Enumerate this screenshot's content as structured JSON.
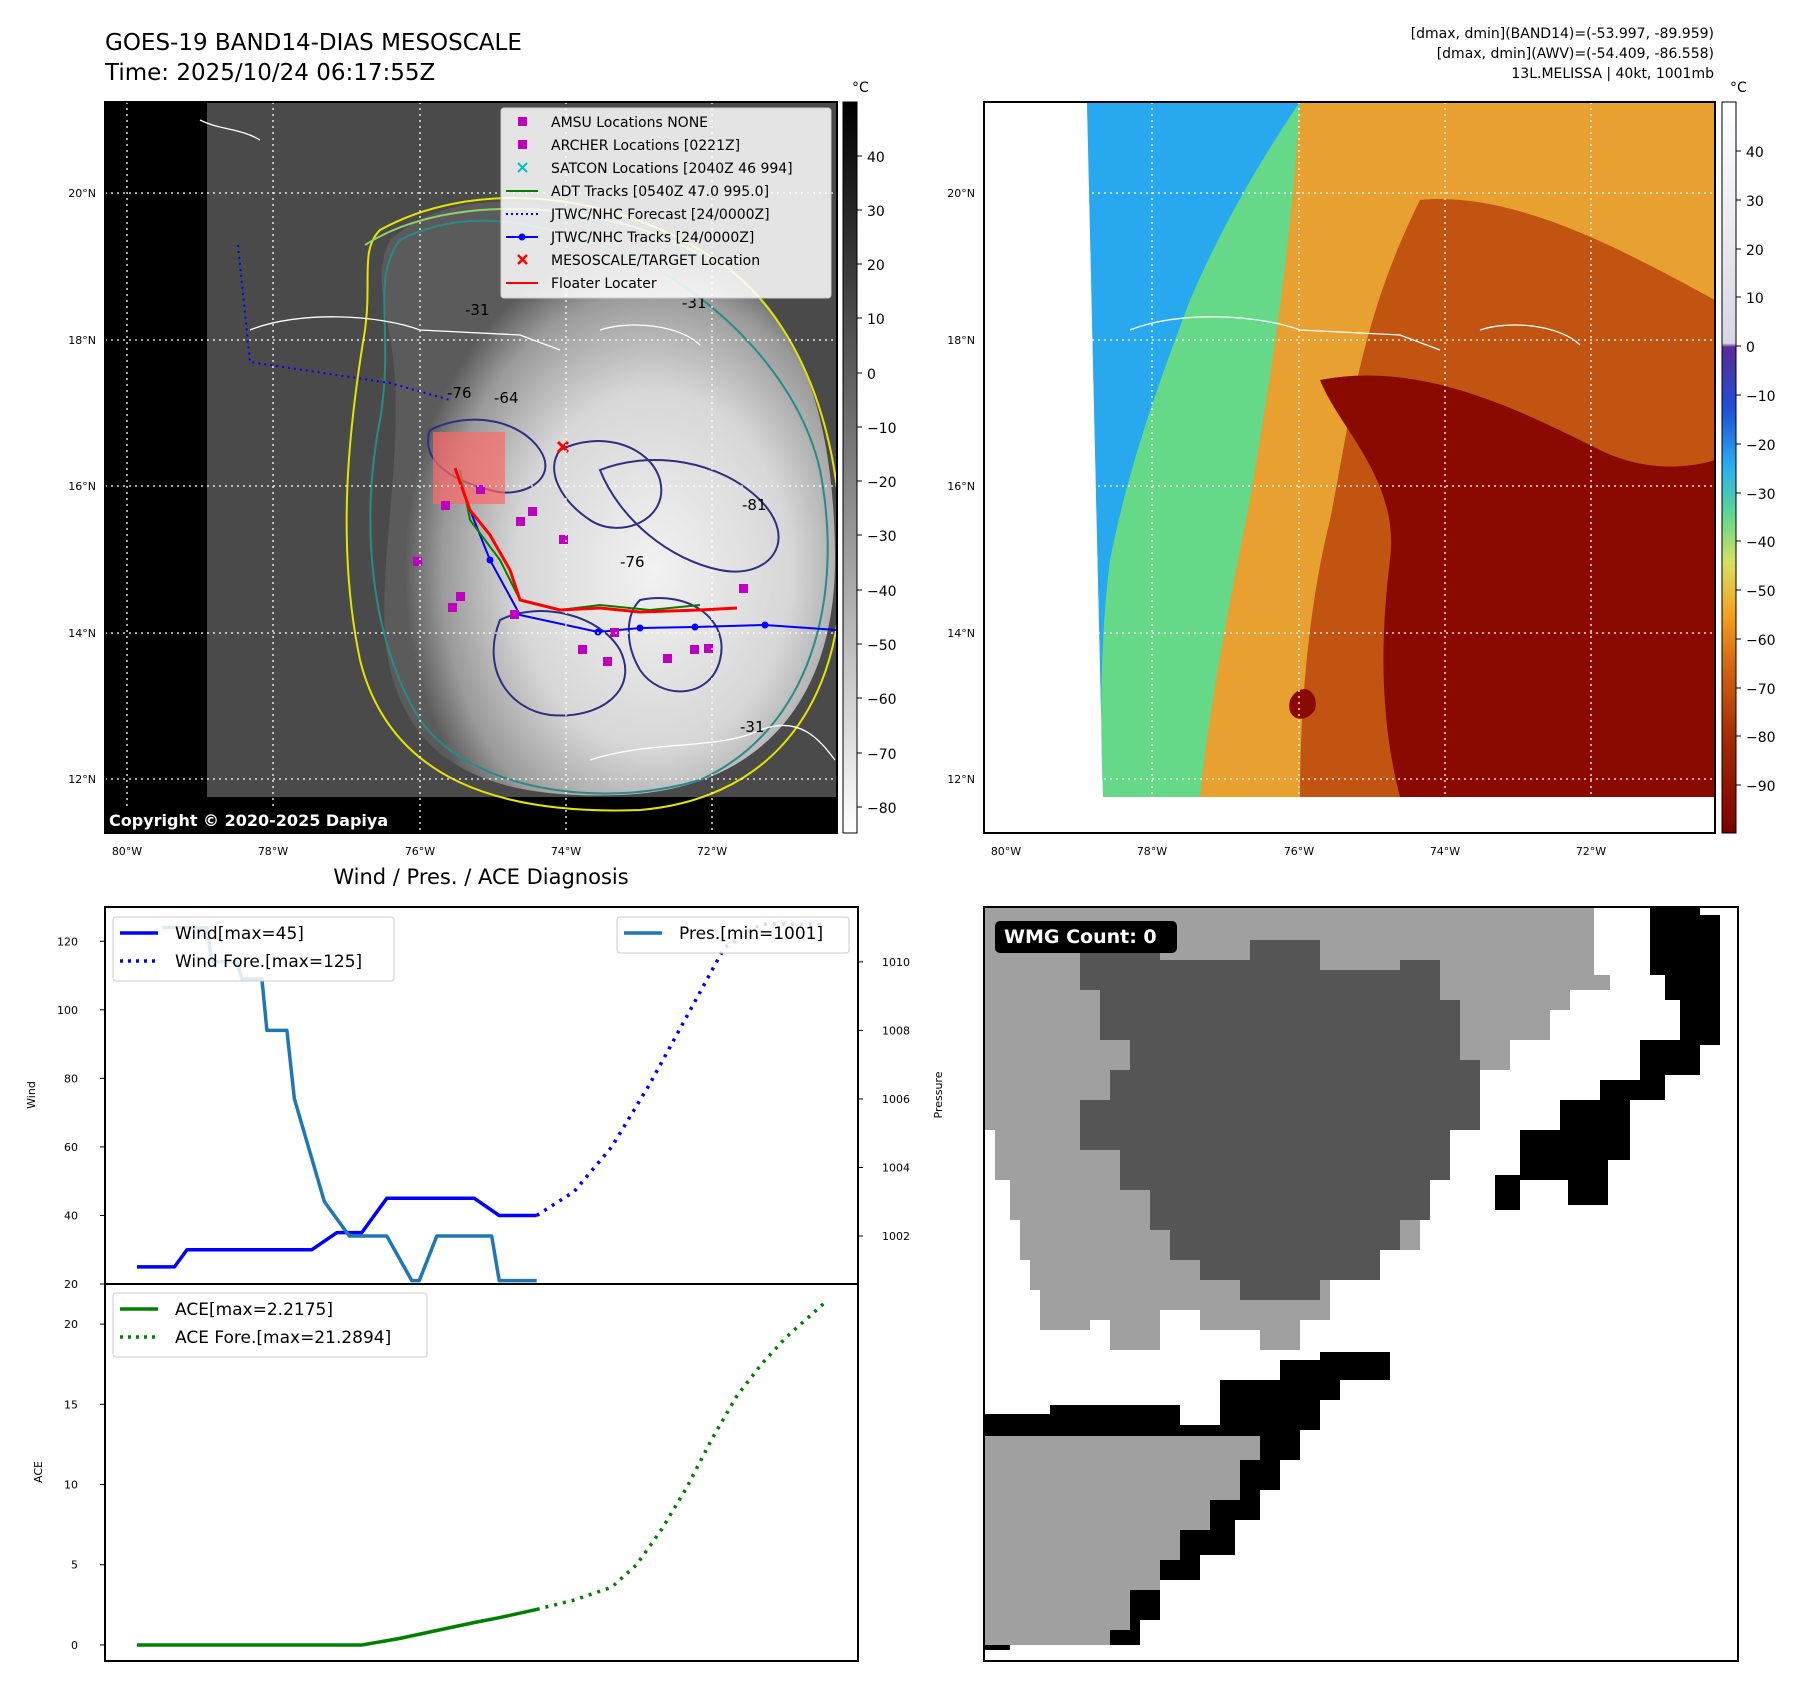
{
  "header": {
    "title_line1": "GOES-19 BAND14-DIAS MESOSCALE",
    "title_line2": "Time: 2025/10/24 06:17:55Z",
    "info_line1": "[dmax, dmin](BAND14)=(-53.997, -89.959)",
    "info_line2": "[dmax, dmin](AWV)=(-54.409, -86.558)",
    "info_line3": "13L.MELISSA | 40kt, 1001mb"
  },
  "map_axes": {
    "lon_ticks": [
      "80°W",
      "78°W",
      "76°W",
      "74°W",
      "72°W"
    ],
    "lat_ticks": [
      "20°N",
      "18°N",
      "16°N",
      "14°N",
      "12°N"
    ]
  },
  "ir_panel": {
    "colorbar_unit": "°C",
    "colorbar_ticks": [
      "40",
      "30",
      "20",
      "10",
      "0",
      "−10",
      "−20",
      "−30",
      "−40",
      "−50",
      "−60",
      "−70",
      "−80"
    ],
    "copyright": "Copyright © 2020-2025 Dapiya",
    "contour_labels": [
      "-76",
      "-64",
      "-81",
      "-76",
      "-31",
      "-31",
      "-31"
    ],
    "legend": [
      {
        "label": "AMSU Locations NONE",
        "color": "#c000c0",
        "marker": "square"
      },
      {
        "label": "ARCHER Locations [0221Z]",
        "color": "#c000c0",
        "marker": "square"
      },
      {
        "label": "SATCON Locations [2040Z 46 994]",
        "color": "#00c0c0",
        "marker": "x"
      },
      {
        "label": "ADT Tracks [0540Z 47.0 995.0]",
        "color": "#008000",
        "marker": "line"
      },
      {
        "label": "JTWC/NHC Forecast [24/0000Z]",
        "color": "#0000ff",
        "marker": "dotted"
      },
      {
        "label": "JTWC/NHC Tracks [24/0000Z]",
        "color": "#0000ff",
        "marker": "line-dot"
      },
      {
        "label": "MESOSCALE/TARGET Location",
        "color": "#ff0000",
        "marker": "x"
      },
      {
        "label": "Floater Locater",
        "color": "#ff0000",
        "marker": "line"
      }
    ]
  },
  "awv_panel": {
    "colorbar_unit": "°C",
    "colorbar_ticks": [
      "40",
      "30",
      "20",
      "10",
      "0",
      "−10",
      "−20",
      "−30",
      "−40",
      "−50",
      "−60",
      "−70",
      "−80",
      "−90"
    ]
  },
  "wmg_panel": {
    "badge": "WMG Count: 0"
  },
  "chart_data": [
    {
      "type": "line",
      "title": "Wind / Pres. / ACE Diagnosis",
      "xlabel": "",
      "ylabel": "Wind",
      "y2label": "Pressure",
      "ylim": [
        20,
        130
      ],
      "y2lim": [
        1000.6,
        1011.6
      ],
      "yticks": [
        "20",
        "40",
        "60",
        "80",
        "100",
        "120"
      ],
      "y2ticks": [
        "1002",
        "1004",
        "1006",
        "1008",
        "1010"
      ],
      "series": [
        {
          "name": "Wind[max=45]",
          "style": "solid",
          "color": "#0000ff",
          "axis": "left",
          "x": [
            0,
            1.5,
            2,
            4,
            4.1,
            5,
            6,
            7,
            8,
            9,
            10,
            11,
            12,
            13.5,
            14.5,
            16
          ],
          "values": [
            25,
            25,
            30,
            30,
            30,
            30,
            30,
            30,
            35,
            35,
            45,
            45,
            45,
            45,
            40,
            40
          ]
        },
        {
          "name": "Wind Fore.[max=125]",
          "style": "dotted",
          "color": "#0000ff",
          "axis": "left",
          "x": [
            16,
            17.5,
            19,
            20.5,
            22,
            23.5,
            25,
            26.5,
            27.5
          ],
          "values": [
            40,
            47,
            60,
            78,
            98,
            118,
            125,
            125,
            125
          ]
        },
        {
          "name": "Pres.[min=1001]",
          "style": "solid",
          "color": "#1f77b4",
          "axis": "right",
          "x": [
            1,
            2.8,
            3,
            4,
            4.2,
            5,
            5.2,
            6,
            6.3,
            7.5,
            8.5,
            9,
            10,
            11,
            11.3,
            12,
            12.5,
            13,
            14,
            14.2,
            14.5,
            15,
            15.5,
            16
          ],
          "values": [
            1011,
            1011,
            1010,
            1010,
            1009.5,
            1009.5,
            1008,
            1008,
            1006,
            1003,
            1002,
            1002,
            1002,
            1000.7,
            1000.7,
            1002,
            1002,
            1002,
            1002,
            1002,
            1000.7,
            1000.7,
            1000.7,
            1000.7
          ]
        }
      ]
    },
    {
      "type": "line",
      "ylabel": "ACE",
      "ylim": [
        -1,
        22.5
      ],
      "yticks": [
        "0",
        "5",
        "10",
        "15",
        "20"
      ],
      "series": [
        {
          "name": "ACE[max=2.2175]",
          "style": "solid",
          "color": "#008000",
          "x": [
            0,
            2,
            4,
            6,
            7.5,
            9,
            10.5,
            12,
            13.5,
            14.5,
            16
          ],
          "values": [
            0,
            0,
            0,
            0,
            0,
            0,
            0.4,
            0.9,
            1.4,
            1.7,
            2.2175
          ]
        },
        {
          "name": "ACE Fore.[max=21.2894]",
          "style": "dotted",
          "color": "#008000",
          "x": [
            16,
            17.5,
            19,
            20,
            21,
            22,
            23,
            24,
            25,
            26,
            27.5
          ],
          "values": [
            2.2175,
            2.8,
            3.6,
            5,
            7.2,
            9.8,
            12.8,
            15.5,
            17.5,
            19.2,
            21.2894
          ]
        }
      ]
    }
  ]
}
